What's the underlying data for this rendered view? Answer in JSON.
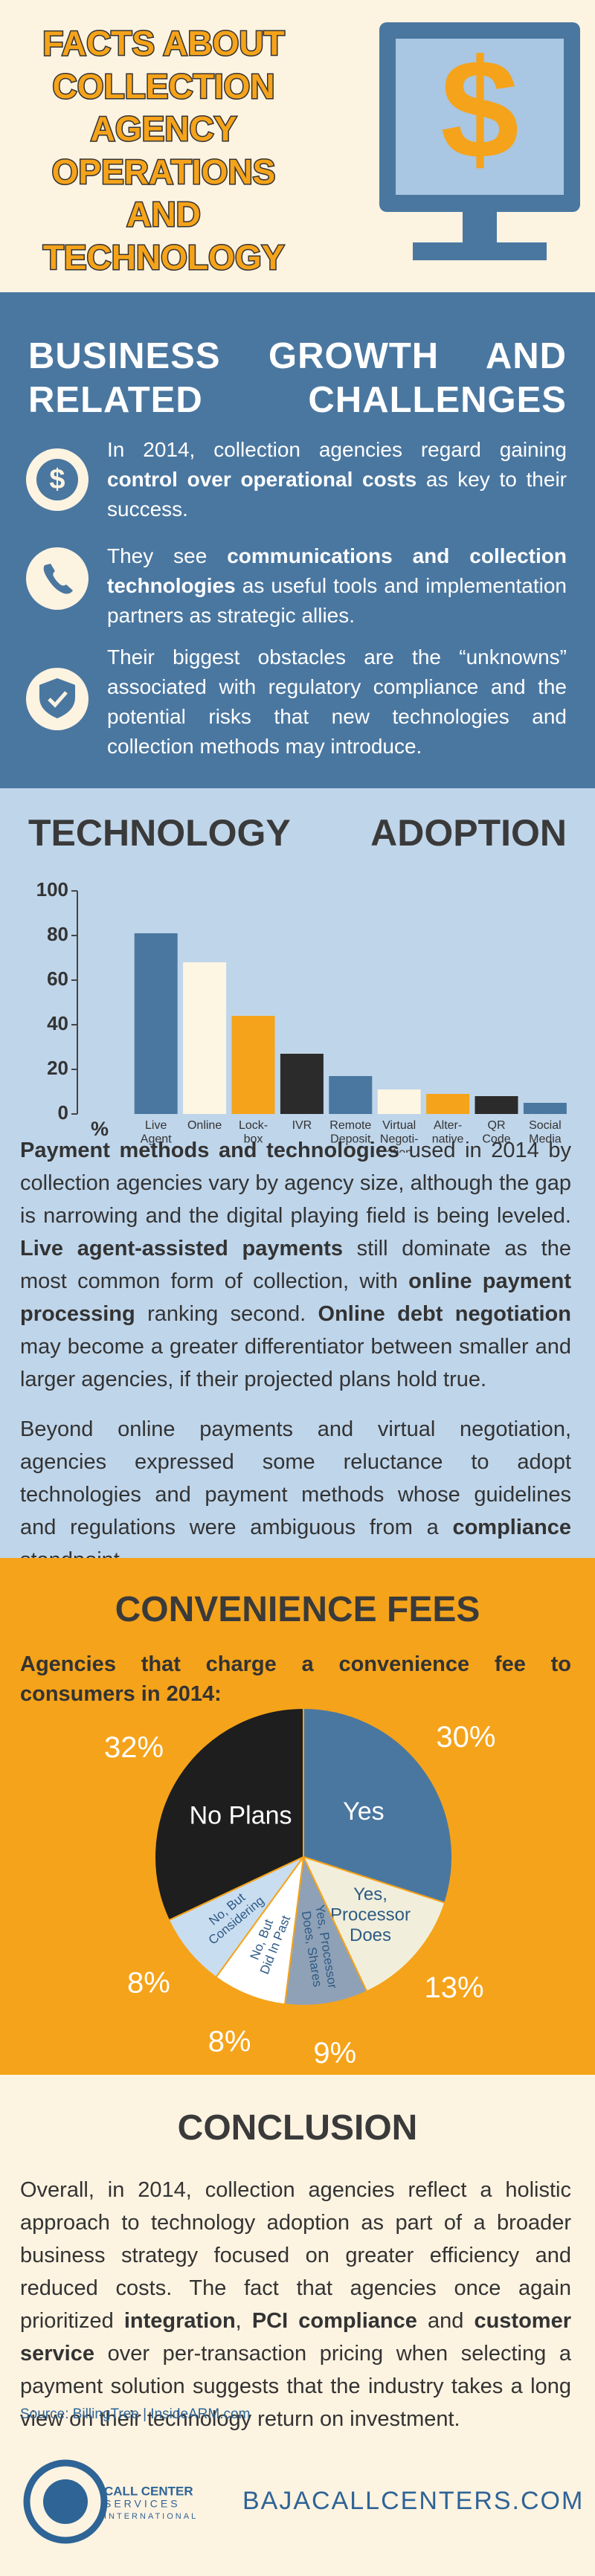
{
  "header": {
    "title": "FACTS ABOUT\nCOLLECTION\nAGENCY\nOPERATIONS\nAND\nTECHNOLOGY"
  },
  "challenges": {
    "title": "BUSINESS GROWTH AND RELATED CHALLENGES",
    "items": [
      [
        "In 2014, collection agencies regard gaining ",
        {
          "text": "control over operational costs",
          "bold": true
        },
        " as key to their success."
      ],
      [
        "They see ",
        {
          "text": "communications and collection technologies",
          "bold": true
        },
        " as useful tools and implementation partners as strategic allies."
      ],
      [
        "Their biggest obstacles are the “unknowns” associated with regulatory compliance and the potential risks that new technologies and collection methods may introduce."
      ]
    ]
  },
  "chart_data": [
    {
      "type": "bar",
      "title": "TECHNOLOGY ADOPTION",
      "x_label": "%",
      "categories": [
        "Live\nAgent",
        "Online",
        "Lock-\nbox",
        "IVR",
        "Remote\nDeposit",
        "Virtual\nNegoti-\nation",
        "Alter-\nnative",
        "QR\nCode",
        "Social\nMedia"
      ],
      "values": [
        81,
        68,
        44,
        27,
        17,
        11,
        9,
        8,
        5
      ],
      "colors": [
        "#4a77a0",
        "#fdf6e3",
        "#f5a31a",
        "#2b2b2b",
        "#4a77a0",
        "#fdf6e3",
        "#f5a31a",
        "#2b2b2b",
        "#4a77a0"
      ],
      "ylim": [
        0,
        100
      ],
      "yticks": [
        0,
        20,
        40,
        60,
        80,
        100
      ]
    },
    {
      "type": "pie",
      "title": "CONVENIENCE FEES",
      "subtitle": "Agencies that charge a convenience fee to consumers in 2014:",
      "categories": [
        "Yes",
        "Yes,\nProcessor\nDoes",
        "Yes, Processor\nDoes, Shares",
        "No, But\nDid In Past",
        "No, But\nConsidering",
        "No Plans"
      ],
      "values": [
        30,
        13,
        9,
        8,
        8,
        32
      ],
      "value_labels": [
        "30%",
        "13%",
        "9%",
        "8%",
        "8%",
        "32%"
      ],
      "colors": [
        "#4a77a0",
        "#f1efdc",
        "#8fa1b6",
        "#ffffff",
        "#c9ddf0",
        "#1e1e1e"
      ]
    }
  ],
  "technology": {
    "paragraphs": [
      [
        {
          "text": "Payment methods and technologies",
          "bold": true
        },
        " used in 2014 by collection agencies vary by agency size, although the gap is narrowing and the digital playing field is being leveled. ",
        {
          "text": "Live agent-assisted payments",
          "bold": true
        },
        " still dominate as the most common form of collection, with ",
        {
          "text": "online payment processing",
          "bold": true
        },
        " ranking second. ",
        {
          "text": "Online debt negotiation",
          "bold": true
        },
        " may become a greater differentiator between smaller and larger agencies, if their projected plans hold true."
      ],
      [
        "Beyond online payments and virtual negotiation, agencies expressed some reluctance to adopt technologies and payment methods whose guidelines and regulations were ambiguous from a ",
        {
          "text": "compliance",
          "bold": true
        },
        " standpoint."
      ]
    ]
  },
  "conclusion": {
    "title": "CONCLUSION",
    "paragraph": [
      "Overall, in 2014, collection agencies reflect a holistic approach to technology adoption as part of a broader business strategy focused on greater efficiency and reduced costs. The fact that agencies once again prioritized ",
      {
        "text": "integration",
        "bold": true
      },
      ", ",
      {
        "text": "PCI compliance",
        "bold": true
      },
      " and ",
      {
        "text": "customer service",
        "bold": true
      },
      " over per-transaction pricing when selecting a payment solution suggests that the industry takes a long view on their technology return on investment."
    ],
    "source": "Source: BillingTree | InsideARM.com"
  },
  "footer": {
    "logo": [
      "CALL CENTER",
      "SERVICES",
      "INTERNATIONAL"
    ],
    "website": "BAJACALLCENTERS.COM"
  }
}
